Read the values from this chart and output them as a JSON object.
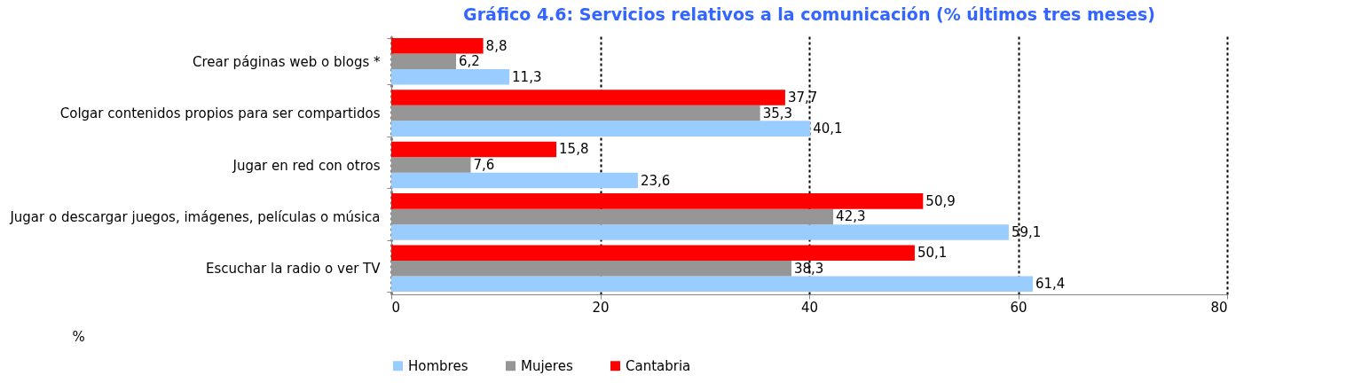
{
  "chart_data": {
    "type": "bar",
    "orientation": "horizontal",
    "title": "Gráfico 4.6: Servicios relativos a la comunicación (% últimos tres meses)",
    "xlabel": "%",
    "categories": [
      "Crear páginas web o blogs *",
      "Colgar contenidos propios para ser compartidos",
      "Jugar en red con otros",
      "Jugar o descargar juegos, imágenes, películas o música",
      "Escuchar la radio o ver TV"
    ],
    "series": [
      {
        "name": "Hombres",
        "color": "#99ccff",
        "values": [
          11.3,
          40.1,
          23.6,
          59.1,
          61.4
        ],
        "value_labels": [
          "11,3",
          "40,1",
          "23,6",
          "59,1",
          "61,4"
        ]
      },
      {
        "name": "Mujeres",
        "color": "#969696",
        "values": [
          6.2,
          35.3,
          7.6,
          42.3,
          38.3
        ],
        "value_labels": [
          "6,2",
          "35,3",
          "7,6",
          "42,3",
          "38,3"
        ]
      },
      {
        "name": "Cantabria",
        "color": "#ff0000",
        "values": [
          8.8,
          37.7,
          15.8,
          50.9,
          50.1
        ],
        "value_labels": [
          "8,8",
          "37,7",
          "15,8",
          "50,9",
          "50,1"
        ]
      }
    ],
    "xlim": [
      0,
      80
    ],
    "xticks": [
      0,
      20,
      40,
      60,
      80
    ],
    "grid": "x",
    "legend": "bottom"
  }
}
